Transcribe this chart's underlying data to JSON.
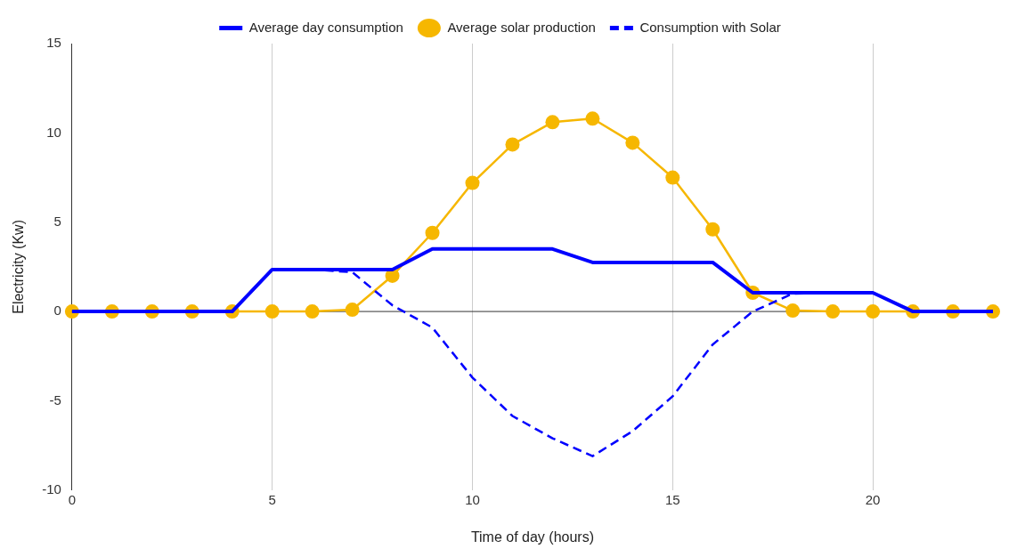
{
  "chart_data": {
    "type": "line",
    "xlabel": "Time of day (hours)",
    "ylabel": "Electricity (Kw)",
    "x": [
      0,
      1,
      2,
      3,
      4,
      5,
      6,
      7,
      8,
      9,
      10,
      11,
      12,
      13,
      14,
      15,
      16,
      17,
      18,
      19,
      20,
      21,
      22,
      23
    ],
    "xlim": [
      0,
      23
    ],
    "xticks": [
      0,
      5,
      10,
      15,
      20
    ],
    "ylim": [
      -10,
      15
    ],
    "yticks": [
      -10,
      -5,
      0,
      5,
      10,
      15
    ],
    "grid": "x",
    "legend": "top",
    "ref_lines": [
      {
        "axis": "y",
        "value": 0,
        "color": "#333333"
      }
    ],
    "series": [
      {
        "name": "Average day consumption",
        "color": "#0000ff",
        "marker": "none",
        "line_style": "solid",
        "values": [
          0,
          0,
          0,
          0,
          0,
          2.35,
          2.35,
          2.35,
          2.35,
          3.5,
          3.5,
          3.5,
          3.5,
          2.75,
          2.75,
          2.75,
          2.75,
          1.05,
          1.05,
          1.05,
          1.05,
          0,
          0,
          0
        ]
      },
      {
        "name": "Average solar production",
        "color": "#f6b700",
        "marker": "circle",
        "line_style": "solid",
        "values": [
          0,
          0,
          0,
          0,
          0,
          0,
          0,
          0.1,
          2,
          4.4,
          7.2,
          9.35,
          10.6,
          10.8,
          9.45,
          7.5,
          4.6,
          1.05,
          0.05,
          0,
          0,
          0,
          0,
          0
        ]
      },
      {
        "name": "Consumption with Solar",
        "color": "#0000ff",
        "marker": "none",
        "line_style": "dashed",
        "values": [
          0,
          0,
          0,
          0,
          0,
          2.35,
          2.35,
          2.2,
          0.35,
          -0.9,
          -3.7,
          -5.85,
          -7.1,
          -8.1,
          -6.7,
          -4.75,
          -1.85,
          0,
          1,
          1.05,
          1.05,
          0,
          0,
          0
        ]
      }
    ]
  }
}
